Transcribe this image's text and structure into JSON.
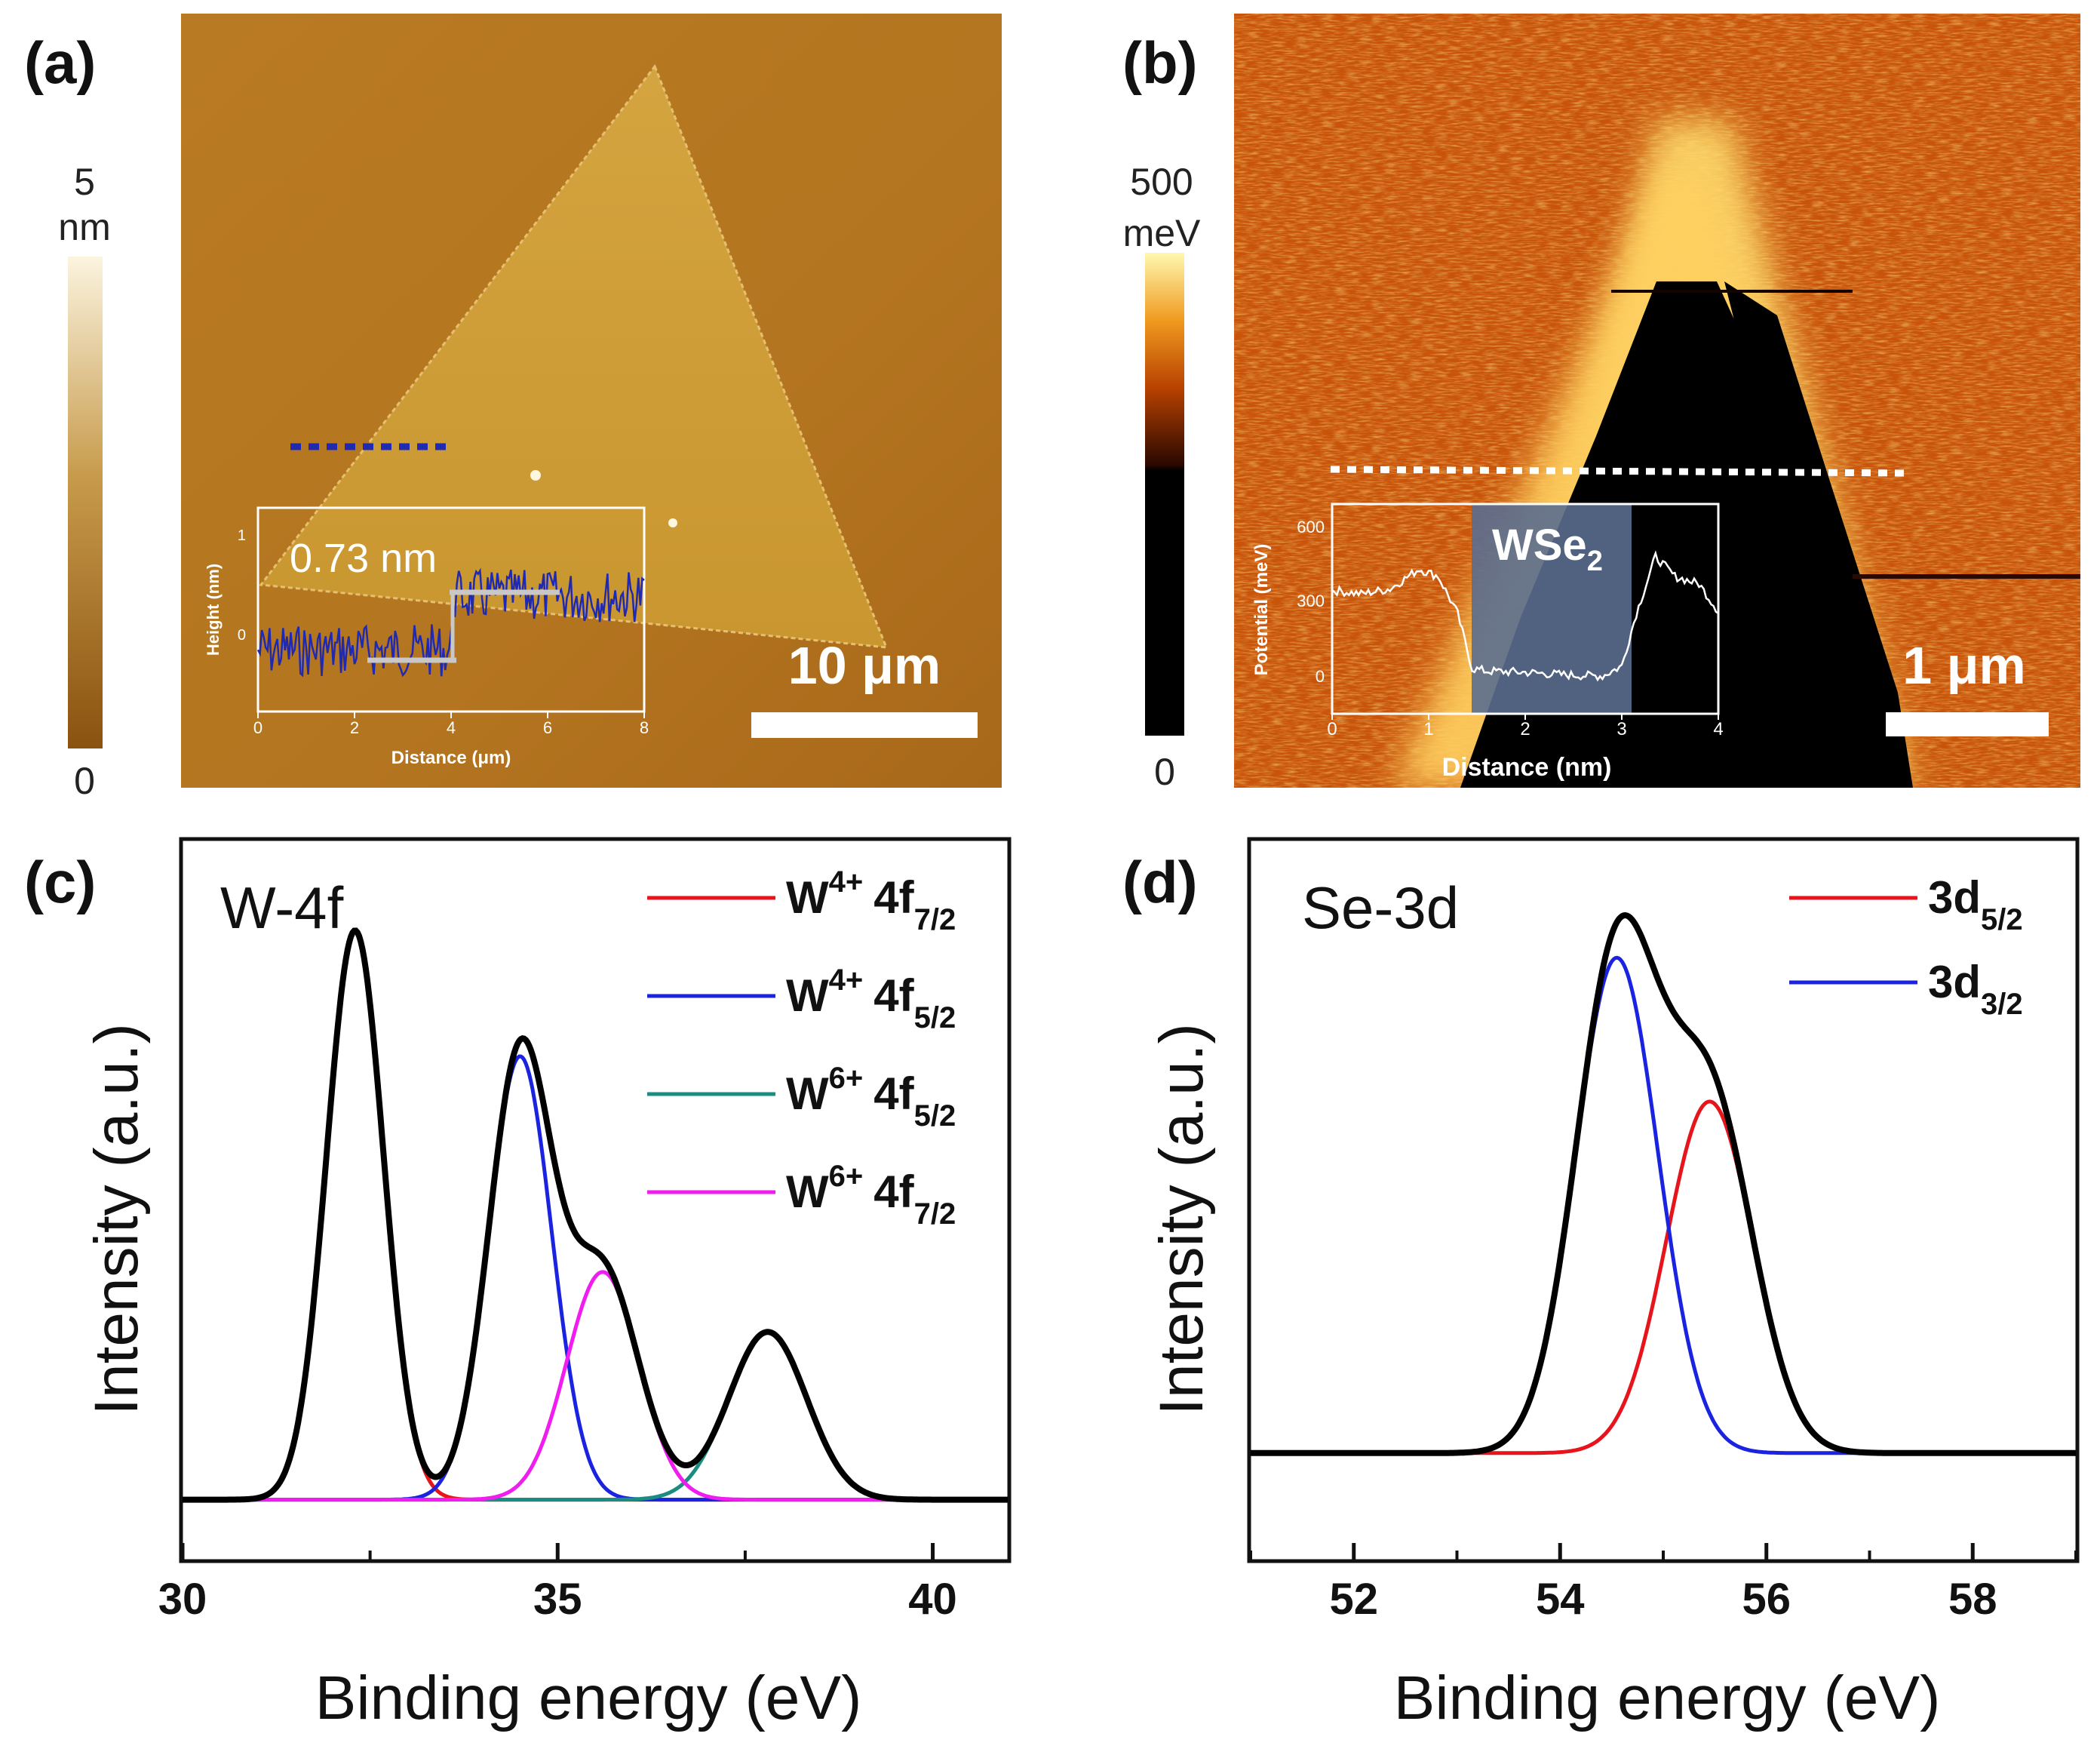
{
  "panel_a": {
    "label": "(a)",
    "colorbar_max": "5",
    "colorbar_unit": "nm",
    "colorbar_min": "0",
    "scale_bar": "10 μm",
    "step_height": "0.73 nm",
    "inset": {
      "xlabel": "Distance (μm)",
      "ylabel": "Height (nm)",
      "xticks": [
        "0",
        "2",
        "4",
        "6",
        "8"
      ],
      "yticks": [
        "1",
        "0"
      ]
    },
    "colors": {
      "low": "#8a5210",
      "high": "#fbf4df",
      "trace": "#1f2ab0"
    }
  },
  "panel_b": {
    "label": "(b)",
    "colorbar_max": "500",
    "colorbar_unit": "meV",
    "colorbar_min": "0",
    "scale_bar": "1 μm",
    "inset": {
      "region_label": "WSe",
      "region_sub": "2",
      "xlabel": "Distance (nm)",
      "ylabel": "Potential (meV)",
      "xticks": [
        "0",
        "1",
        "2",
        "3",
        "4"
      ],
      "yticks": [
        "600",
        "300",
        "0"
      ]
    },
    "colors": {
      "dark": "#000000",
      "mid": "#c04a05",
      "bright": "#fff3a0"
    }
  },
  "chart_data": [
    {
      "type": "line",
      "panel_label": "(c)",
      "title": "W-4f",
      "xlabel": "Binding energy (eV)",
      "ylabel": "Intensity (a.u.)",
      "xlim": [
        30,
        41
      ],
      "ylim": [
        -0.1,
        1.1
      ],
      "xticks": [
        "30",
        "35",
        "40"
      ],
      "series": [
        {
          "name_main": "W",
          "name_sup": "4+",
          "name_orb": "4f",
          "name_sub": "7/2",
          "color": "#e8141c",
          "peak": 32.3,
          "height": 0.95,
          "width": 0.38
        },
        {
          "name_main": "W",
          "name_sup": "4+",
          "name_orb": "4f",
          "name_sub": "5/2",
          "color": "#1a23e0",
          "peak": 34.5,
          "height": 0.74,
          "width": 0.42
        },
        {
          "name_main": "W",
          "name_sup": "6+",
          "name_orb": "4f",
          "name_sub": "5/2",
          "color": "#1a8c80",
          "peak": 37.8,
          "height": 0.28,
          "width": 0.52
        },
        {
          "name_main": "W",
          "name_sup": "6+",
          "name_orb": "4f",
          "name_sub": "7/2",
          "color": "#f01cf0",
          "peak": 35.6,
          "height": 0.38,
          "width": 0.48
        }
      ],
      "envelope_color": "#000000"
    },
    {
      "type": "line",
      "panel_label": "(d)",
      "title": "Se-3d",
      "xlabel": "Binding energy (eV)",
      "ylabel": "Intensity (a.u.)",
      "xlim": [
        51,
        59
      ],
      "ylim": [
        -0.2,
        1.15
      ],
      "xticks": [
        "52",
        "54",
        "56",
        "58"
      ],
      "series": [
        {
          "name_main": "3d",
          "name_sub": "5/2",
          "color": "#e8141c",
          "peak": 55.45,
          "height": 0.66,
          "width": 0.42
        },
        {
          "name_main": "3d",
          "name_sub": "3/2",
          "color": "#1a23e0",
          "peak": 54.55,
          "height": 0.93,
          "width": 0.4
        }
      ],
      "envelope_color": "#000000"
    }
  ]
}
